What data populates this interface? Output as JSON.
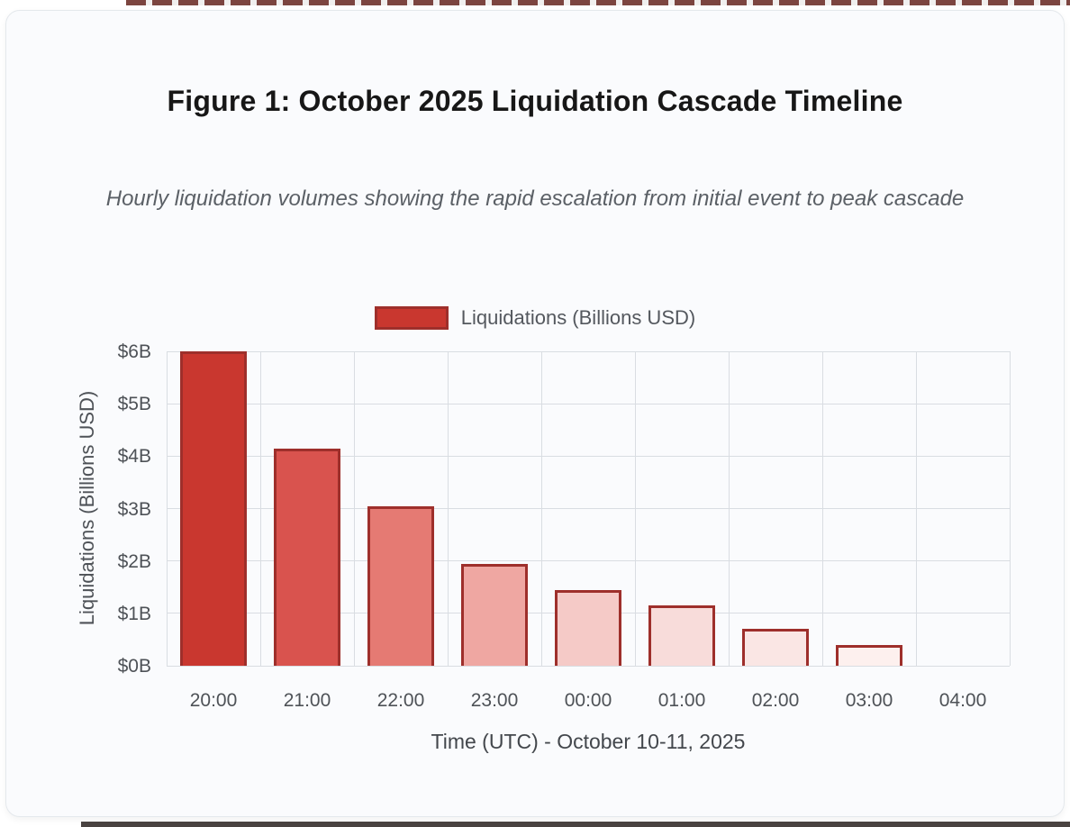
{
  "figure": {
    "title": "Figure 1: October 2025 Liquidation Cascade Timeline",
    "subtitle": "Hourly liquidation volumes showing the rapid escalation from initial event to peak cascade"
  },
  "chart_data": {
    "type": "bar",
    "title": "Figure 1: October 2025 Liquidation Cascade Timeline",
    "subtitle": "Hourly liquidation volumes showing the rapid escalation from initial event to peak cascade",
    "legend": "Liquidations (Billions USD)",
    "legend_position": "top",
    "categories": [
      "20:00",
      "21:00",
      "22:00",
      "23:00",
      "00:00",
      "01:00",
      "02:00",
      "03:00",
      "04:00"
    ],
    "values": [
      6.0,
      4.15,
      3.05,
      1.95,
      1.45,
      1.15,
      0.7,
      0.4,
      0
    ],
    "xlabel": "Time (UTC) - October 10-11, 2025",
    "ylabel": "Liquidations (Billions USD)",
    "ylim": [
      0,
      6
    ],
    "yticks": [
      "$0B",
      "$1B",
      "$2B",
      "$3B",
      "$4B",
      "$5B",
      "$6B"
    ],
    "grid": true,
    "colors": {
      "bar_fills": [
        "#c9372f",
        "#d9534e",
        "#e57a73",
        "#efa7a2",
        "#f5cac7",
        "#f8dcda",
        "#fae6e4",
        "#fdf0ee",
        "#ffffff"
      ],
      "bar_border": "#9e2f2b",
      "grid_line": "#d9dde2",
      "card_background": "#fafbfd",
      "title_text": "#171717",
      "muted_text": "#5b6066"
    }
  }
}
